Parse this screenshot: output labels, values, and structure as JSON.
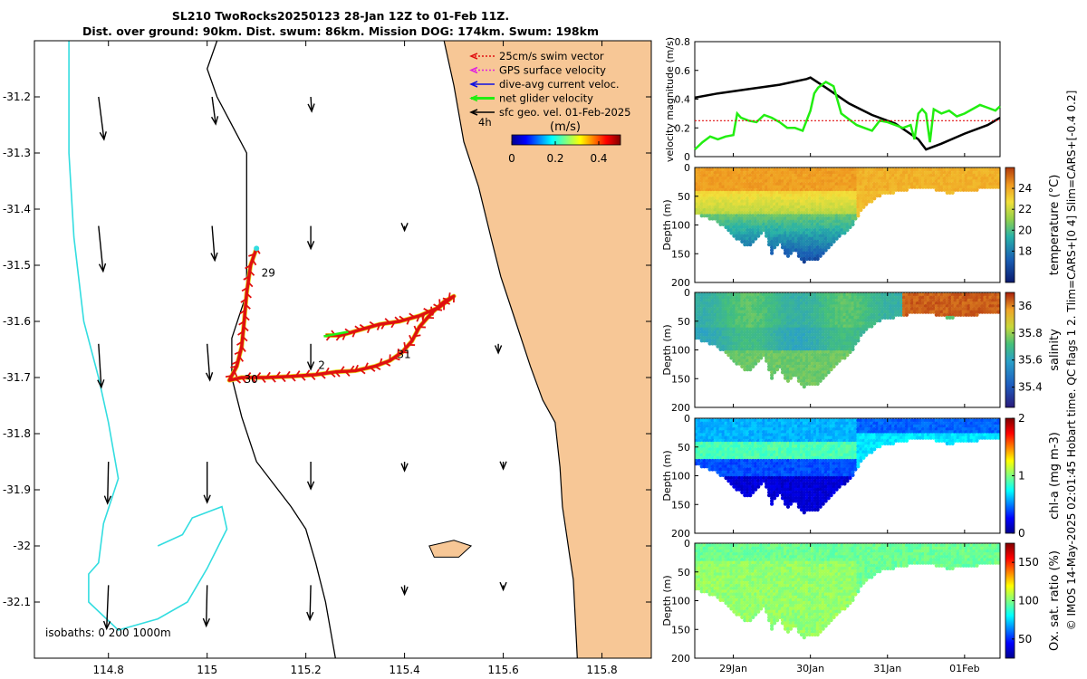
{
  "title": {
    "line1": "SL210 TwoRocks20250123 28-Jan 12Z to 01-Feb 11Z.",
    "line2": "Dist. over ground: 90km. Dist. swum: 86km. Mission DOG: 174km. Swum: 198km"
  },
  "footer_note": "© IMOS 14-May-2025 02:01:45 Hobart time. QC flags 1  2. Tlim=CARS+[0 4] Slim=CARS+[-0.4 0.2]",
  "colors": {
    "land": "#f7c796",
    "coast": "#000000",
    "isobath": "#33dde0",
    "track": "#e01010",
    "net": "#22ee11",
    "env": "#000000"
  },
  "chart_data": [
    {
      "type": "scatter",
      "name": "map",
      "xlim": [
        114.65,
        115.9
      ],
      "ylim": [
        -32.2,
        -31.1
      ],
      "xticks": [
        "114.8",
        "115",
        "115.2",
        "115.4",
        "115.6",
        "115.8"
      ],
      "xtick_values": [
        114.8,
        115.0,
        115.2,
        115.4,
        115.6,
        115.8
      ],
      "yticks": [
        "-31.2",
        "-31.3",
        "-31.4",
        "-31.5",
        "-31.6",
        "-31.7",
        "-31.8",
        "-31.9",
        "-32",
        "-32.1"
      ],
      "ytick_values": [
        -31.2,
        -31.3,
        -31.4,
        -31.5,
        -31.6,
        -31.7,
        -31.8,
        -31.9,
        -32.0,
        -32.1
      ],
      "legend": [
        {
          "label": "25cm/s swim vector",
          "color": "#e01010"
        },
        {
          "label": "GPS surface velocity",
          "color": "#e020e0"
        },
        {
          "label": "dive-avg current veloc.",
          "color": "#1010e0"
        },
        {
          "label": "net glider velocity",
          "color": "#22ee11"
        },
        {
          "label": "sfc geo. vel. 01-Feb-2025",
          "color": "#000000"
        }
      ],
      "legend_tag": "4h",
      "colorbar_label": "(m/s)",
      "colorbar_ticks": [
        "0",
        "0.2",
        "0.4"
      ],
      "colorbar_tick_values": [
        0,
        0.2,
        0.4
      ],
      "colorbar_range": [
        0,
        0.5
      ],
      "isobaths_label": "isobaths: 0   200  1000m",
      "day_labels": [
        {
          "text": "29",
          "lon": 115.11,
          "lat": -31.52
        },
        {
          "text": "2",
          "lon": 115.225,
          "lat": -31.685
        },
        {
          "text": "31",
          "lon": 115.385,
          "lat": -31.665
        },
        {
          "text": "30",
          "lon": 115.075,
          "lat": -31.71
        }
      ],
      "glider_track": [
        [
          115.1,
          -31.47
        ],
        [
          115.088,
          -31.5
        ],
        [
          115.08,
          -31.55
        ],
        [
          115.075,
          -31.6
        ],
        [
          115.07,
          -31.645
        ],
        [
          115.06,
          -31.68
        ],
        [
          115.045,
          -31.705
        ],
        [
          115.07,
          -31.7
        ],
        [
          115.12,
          -31.7
        ],
        [
          115.17,
          -31.698
        ],
        [
          115.22,
          -31.695
        ],
        [
          115.26,
          -31.69
        ],
        [
          115.3,
          -31.688
        ],
        [
          115.34,
          -31.68
        ],
        [
          115.37,
          -31.67
        ],
        [
          115.395,
          -31.655
        ],
        [
          115.415,
          -31.635
        ],
        [
          115.43,
          -31.61
        ],
        [
          115.455,
          -31.585
        ],
        [
          115.48,
          -31.565
        ],
        [
          115.5,
          -31.555
        ],
        [
          115.47,
          -31.575
        ],
        [
          115.43,
          -31.59
        ],
        [
          115.39,
          -31.6
        ],
        [
          115.35,
          -31.605
        ],
        [
          115.31,
          -31.615
        ],
        [
          115.27,
          -31.625
        ],
        [
          115.24,
          -31.625
        ]
      ],
      "geo_vectors": [
        {
          "lon": 114.78,
          "lat": -31.2,
          "u": 0.06,
          "v": -0.47
        },
        {
          "lon": 115.01,
          "lat": -31.2,
          "u": 0.04,
          "v": -0.3
        },
        {
          "lon": 115.21,
          "lat": -31.2,
          "u": 0.01,
          "v": -0.16
        },
        {
          "lon": 114.78,
          "lat": -31.43,
          "u": 0.05,
          "v": -0.5
        },
        {
          "lon": 115.01,
          "lat": -31.43,
          "u": 0.03,
          "v": -0.38
        },
        {
          "lon": 115.21,
          "lat": -31.43,
          "u": 0.0,
          "v": -0.25
        },
        {
          "lon": 115.4,
          "lat": -31.43,
          "u": 0.0,
          "v": -0.05
        },
        {
          "lon": 114.78,
          "lat": -31.64,
          "u": 0.03,
          "v": -0.48
        },
        {
          "lon": 115.0,
          "lat": -31.64,
          "u": 0.03,
          "v": -0.4
        },
        {
          "lon": 115.21,
          "lat": -31.64,
          "u": 0.0,
          "v": -0.28
        },
        {
          "lon": 115.59,
          "lat": -31.64,
          "u": 0.0,
          "v": -0.1
        },
        {
          "lon": 114.8,
          "lat": -31.85,
          "u": -0.01,
          "v": -0.46
        },
        {
          "lon": 115.0,
          "lat": -31.85,
          "u": 0.0,
          "v": -0.45
        },
        {
          "lon": 115.21,
          "lat": -31.85,
          "u": 0.0,
          "v": -0.3
        },
        {
          "lon": 115.4,
          "lat": -31.85,
          "u": 0.0,
          "v": -0.1
        },
        {
          "lon": 115.6,
          "lat": -31.85,
          "u": 0.0,
          "v": -0.08
        },
        {
          "lon": 114.8,
          "lat": -32.07,
          "u": -0.02,
          "v": -0.48
        },
        {
          "lon": 115.0,
          "lat": -32.07,
          "u": -0.01,
          "v": -0.45
        },
        {
          "lon": 115.21,
          "lat": -32.07,
          "u": -0.01,
          "v": -0.38
        },
        {
          "lon": 115.4,
          "lat": -32.07,
          "u": 0.0,
          "v": -0.1
        },
        {
          "lon": 115.6,
          "lat": -32.07,
          "u": 0.0,
          "v": -0.05
        }
      ],
      "coastline": [
        [
          115.48,
          -31.1
        ],
        [
          115.5,
          -31.18
        ],
        [
          115.52,
          -31.28
        ],
        [
          115.55,
          -31.36
        ],
        [
          115.575,
          -31.45
        ],
        [
          115.595,
          -31.52
        ],
        [
          115.625,
          -31.6
        ],
        [
          115.655,
          -31.68
        ],
        [
          115.68,
          -31.74
        ],
        [
          115.705,
          -31.78
        ],
        [
          115.715,
          -31.86
        ],
        [
          115.72,
          -31.93
        ],
        [
          115.73,
          -31.99
        ],
        [
          115.735,
          -32.02
        ],
        [
          115.742,
          -32.06
        ],
        [
          115.75,
          -32.2
        ]
      ],
      "shelf_edge_200m": [
        [
          115.02,
          -31.1
        ],
        [
          115.0,
          -31.15
        ],
        [
          115.02,
          -31.2
        ],
        [
          115.08,
          -31.3
        ],
        [
          115.08,
          -31.45
        ],
        [
          115.08,
          -31.55
        ],
        [
          115.05,
          -31.63
        ],
        [
          115.05,
          -31.7
        ],
        [
          115.07,
          -31.77
        ],
        [
          115.1,
          -31.85
        ],
        [
          115.17,
          -31.93
        ],
        [
          115.2,
          -31.97
        ],
        [
          115.22,
          -32.03
        ],
        [
          115.24,
          -32.1
        ],
        [
          115.26,
          -32.2
        ]
      ],
      "isobath_1000m_west": [
        [
          114.72,
          -31.1
        ],
        [
          114.72,
          -31.3
        ],
        [
          114.73,
          -31.45
        ],
        [
          114.75,
          -31.6
        ],
        [
          114.78,
          -31.7
        ],
        [
          114.8,
          -31.78
        ],
        [
          114.82,
          -31.88
        ],
        [
          114.79,
          -31.96
        ],
        [
          114.78,
          -32.03
        ],
        [
          114.76,
          -32.05
        ],
        [
          114.76,
          -32.1
        ],
        [
          114.82,
          -32.15
        ],
        [
          114.9,
          -32.13
        ],
        [
          114.96,
          -32.1
        ],
        [
          115.0,
          -32.04
        ],
        [
          115.04,
          -31.97
        ],
        [
          115.03,
          -31.93
        ],
        [
          114.97,
          -31.95
        ],
        [
          114.95,
          -31.98
        ],
        [
          114.9,
          -32.0
        ]
      ],
      "island": [
        [
          115.45,
          -32.0
        ],
        [
          115.5,
          -31.99
        ],
        [
          115.535,
          -32.0
        ],
        [
          115.51,
          -32.02
        ],
        [
          115.46,
          -32.02
        ]
      ]
    },
    {
      "type": "line",
      "name": "velocity",
      "ylabel": "velocity magnitude (m/s)",
      "ylim": [
        0,
        0.8
      ],
      "yticks": [
        "0",
        "0.2",
        "0.4",
        "0.6",
        "0.8"
      ],
      "ytick_values": [
        0,
        0.2,
        0.4,
        0.6,
        0.8
      ],
      "xlim_days": [
        28.5,
        32.46
      ],
      "series": [
        {
          "name": "envelope",
          "color": "#000000",
          "x": [
            28.5,
            28.8,
            29.2,
            29.6,
            29.95,
            30.0,
            30.2,
            30.5,
            30.8,
            31.1,
            31.4,
            31.5,
            31.7,
            32.0,
            32.3,
            32.46
          ],
          "values": [
            0.41,
            0.44,
            0.47,
            0.5,
            0.54,
            0.55,
            0.48,
            0.37,
            0.29,
            0.23,
            0.12,
            0.05,
            0.09,
            0.16,
            0.22,
            0.27
          ]
        },
        {
          "name": "net glider velocity",
          "color": "#22ee11",
          "x": [
            28.5,
            28.6,
            28.7,
            28.8,
            28.9,
            29.0,
            29.05,
            29.1,
            29.2,
            29.3,
            29.4,
            29.5,
            29.6,
            29.7,
            29.8,
            29.9,
            30.0,
            30.05,
            30.1,
            30.2,
            30.3,
            30.4,
            30.5,
            30.6,
            30.7,
            30.8,
            30.9,
            31.0,
            31.1,
            31.2,
            31.3,
            31.35,
            31.4,
            31.45,
            31.5,
            31.55,
            31.6,
            31.7,
            31.8,
            31.9,
            32.0,
            32.1,
            32.2,
            32.3,
            32.4,
            32.46
          ],
          "values": [
            0.05,
            0.1,
            0.14,
            0.12,
            0.14,
            0.15,
            0.3,
            0.27,
            0.25,
            0.24,
            0.29,
            0.27,
            0.24,
            0.2,
            0.2,
            0.18,
            0.32,
            0.44,
            0.48,
            0.52,
            0.49,
            0.3,
            0.26,
            0.22,
            0.2,
            0.18,
            0.25,
            0.24,
            0.22,
            0.2,
            0.22,
            0.12,
            0.3,
            0.33,
            0.3,
            0.1,
            0.33,
            0.3,
            0.32,
            0.28,
            0.3,
            0.33,
            0.36,
            0.34,
            0.32,
            0.35
          ]
        },
        {
          "name": "swim reference",
          "color": "#e01010",
          "x": [
            28.5,
            32.46
          ],
          "values": [
            0.25,
            0.25
          ]
        }
      ]
    },
    {
      "type": "heatmap",
      "name": "temperature",
      "ylabel": "Depth (m)",
      "clabel": "temperature (°C)",
      "ylim": [
        0,
        200
      ],
      "yticks": [
        "0",
        "50",
        "100",
        "150",
        "200"
      ],
      "ytick_values": [
        0,
        50,
        100,
        150,
        200
      ],
      "clim": [
        15,
        26
      ],
      "cticks": [
        "18",
        "20",
        "22",
        "24"
      ],
      "ctick_values": [
        18,
        20,
        22,
        24
      ],
      "surface_value": 24.5,
      "deep_value": 17.0
    },
    {
      "type": "heatmap",
      "name": "salinity",
      "ylabel": "Depth (m)",
      "clabel": "salinity",
      "ylim": [
        0,
        200
      ],
      "yticks": [
        "0",
        "50",
        "100",
        "150",
        "200"
      ],
      "ytick_values": [
        0,
        50,
        100,
        150,
        200
      ],
      "clim": [
        35.25,
        36.1
      ],
      "cticks": [
        "35.4",
        "35.6",
        "35.8",
        "36"
      ],
      "ctick_values": [
        35.4,
        35.6,
        35.8,
        36.0
      ],
      "surface_value": 35.65,
      "deep_value": 35.62
    },
    {
      "type": "heatmap",
      "name": "chl-a",
      "ylabel": "Depth (m)",
      "clabel": "chl-a (mg m-3)",
      "ylim": [
        0,
        200
      ],
      "yticks": [
        "0",
        "50",
        "100",
        "150",
        "200"
      ],
      "ytick_values": [
        0,
        50,
        100,
        150,
        200
      ],
      "clim": [
        0,
        2
      ],
      "cticks": [
        "0",
        "1",
        "2"
      ],
      "ctick_values": [
        0,
        1,
        2
      ],
      "surface_value": 0.4,
      "deep_value": 0.05
    },
    {
      "type": "heatmap",
      "name": "oxygen",
      "ylabel": "Depth (m)",
      "clabel": "Ox. sat. ratio (%)",
      "ylim": [
        0,
        200
      ],
      "yticks": [
        "0",
        "50",
        "100",
        "150",
        "200"
      ],
      "ytick_values": [
        0,
        50,
        100,
        150,
        200
      ],
      "clim": [
        25,
        175
      ],
      "cticks": [
        "50",
        "100",
        "150"
      ],
      "ctick_values": [
        50,
        100,
        150
      ],
      "surface_value": 100,
      "deep_value": 100
    }
  ],
  "time_axis": {
    "xlim_days": [
      28.5,
      32.46
    ],
    "ticks": [
      "29Jan",
      "30Jan",
      "31Jan",
      "01Feb"
    ],
    "tick_values": [
      29,
      30,
      31,
      32
    ]
  }
}
